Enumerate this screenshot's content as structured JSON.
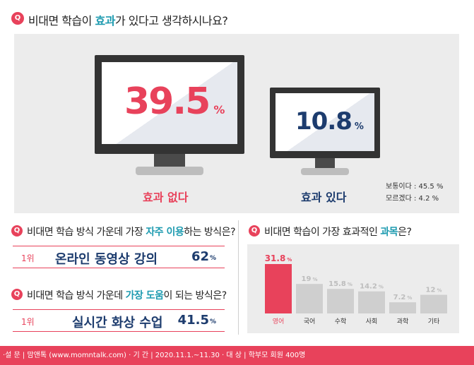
{
  "q1": {
    "badge": "Q",
    "pre": "비대면 학습이 ",
    "hl": "효과",
    "post": "가 있다고 생각하시나요?"
  },
  "no_effect": {
    "value": "39.5",
    "unit": "%",
    "label": "효과 없다",
    "color": "#e8425b"
  },
  "effect": {
    "value": "10.8",
    "unit": "%",
    "label": "효과 있다",
    "color": "#1d3c6e"
  },
  "others": [
    "보통이다 : 45.5 %",
    "모르겠다 : 4.2 %"
  ],
  "q2": {
    "badge": "Q",
    "pre": "비대면 학습 방식 가운데 가장 ",
    "hl": "자주 이용",
    "post": "하는 방식은?"
  },
  "a2": {
    "rank": "1위",
    "method": "온라인 동영상 강의",
    "value": "62",
    "unit": "%"
  },
  "q3": {
    "badge": "Q",
    "pre": "비대면 학습 방식 가운데 ",
    "hl": "가장 도움",
    "post": "이 되는 방식은?"
  },
  "a3": {
    "rank": "1위",
    "method": "실시간 화상 수업",
    "value": "41.5",
    "unit": "%"
  },
  "q4": {
    "badge": "Q",
    "pre": "비대면 학습이 가장 효과적인 ",
    "hl": "과목",
    "post": "은?"
  },
  "chart_data": {
    "type": "bar",
    "categories": [
      "영어",
      "국어",
      "수학",
      "사회",
      "과학",
      "기타"
    ],
    "values": [
      31.8,
      19,
      15.8,
      14.2,
      7.2,
      12
    ],
    "value_labels": [
      "31.8",
      "19",
      "15.8",
      "14.2",
      "7.2",
      "12"
    ],
    "unit": "%",
    "colors": {
      "highlight": "#e8425b",
      "default": "#cfcfcf"
    }
  },
  "footer": "·설 문 | 맘앤톡 (www.momntalk.com)   · 기 간 | 2020.11.1.~11.30    · 대 상 | 학부모 회원 400명",
  "colors": {
    "accent": "#e8425b",
    "teal": "#1e9bb0",
    "navy": "#1d3c6e"
  }
}
